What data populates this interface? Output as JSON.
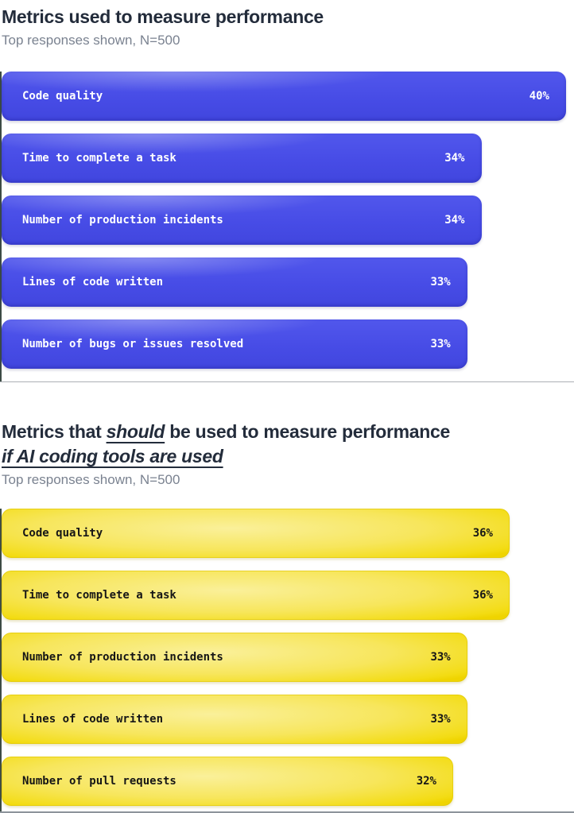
{
  "section1": {
    "title": "Metrics used to measure performance",
    "subtitle": "Top responses shown, N=500"
  },
  "section2": {
    "title_prefix": "Metrics that ",
    "title_emph": "should",
    "title_rest": " be used to measure performance",
    "title_line2": "if AI coding tools are used",
    "subtitle": "Top responses shown, N=500"
  },
  "colors": {
    "blue_bar": "#474CE6",
    "yellow_bar": "#F5E140",
    "title_text": "#232C3B",
    "subtitle_text": "#7A8290",
    "blue_bar_text": "#FFFFFF",
    "yellow_bar_text": "#161616",
    "axis_line": "#3C4B45",
    "divider": "#ACB0B5"
  },
  "chart_data": [
    {
      "type": "bar",
      "orientation": "horizontal",
      "title": "Metrics used to measure performance",
      "subtitle": "Top responses shown, N=500",
      "categories": [
        "Code quality",
        "Time to complete a task",
        "Number of production incidents",
        "Lines of code written",
        "Number of bugs or issues resolved"
      ],
      "values": [
        40,
        34,
        34,
        33,
        33
      ],
      "unit": "%",
      "value_labels": [
        "40%",
        "34%",
        "34%",
        "33%",
        "33%"
      ],
      "xlim": [
        0,
        40
      ],
      "grid": false,
      "legend": false,
      "bar_color": "#474CE6",
      "label_position": "inside"
    },
    {
      "type": "bar",
      "orientation": "horizontal",
      "title": "Metrics that should be used to measure performance if AI coding tools are used",
      "subtitle": "Top responses shown, N=500",
      "categories": [
        "Code quality",
        "Time to complete a task",
        "Number of production incidents",
        "Lines of code written",
        "Number of pull requests"
      ],
      "values": [
        36,
        36,
        33,
        33,
        32
      ],
      "unit": "%",
      "value_labels": [
        "36%",
        "36%",
        "33%",
        "33%",
        "32%"
      ],
      "xlim": [
        0,
        40
      ],
      "grid": false,
      "legend": false,
      "bar_color": "#F5E140",
      "label_position": "inside"
    }
  ]
}
